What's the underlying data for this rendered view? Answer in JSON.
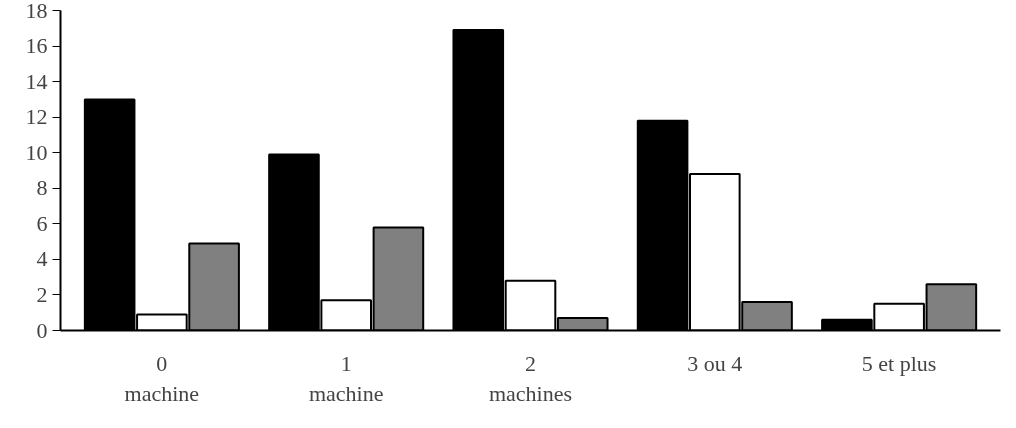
{
  "chart_data": {
    "type": "bar",
    "categories": [
      "0\nmachine",
      "1\nmachine",
      "2\nmachines",
      "3 ou 4",
      "5 et plus"
    ],
    "series": [
      {
        "color": "#000000",
        "values": [
          13,
          9.9,
          16.9,
          11.8,
          0.6
        ]
      },
      {
        "color": "#ffffff",
        "values": [
          0.9,
          1.7,
          2.8,
          8.8,
          1.5
        ]
      },
      {
        "color": "#808080",
        "values": [
          4.9,
          5.8,
          0.7,
          1.6,
          2.6
        ]
      }
    ],
    "ylim": [
      0,
      18
    ],
    "yticks": [
      0,
      2,
      4,
      6,
      8,
      10,
      12,
      14,
      16,
      18
    ],
    "grid": false
  }
}
